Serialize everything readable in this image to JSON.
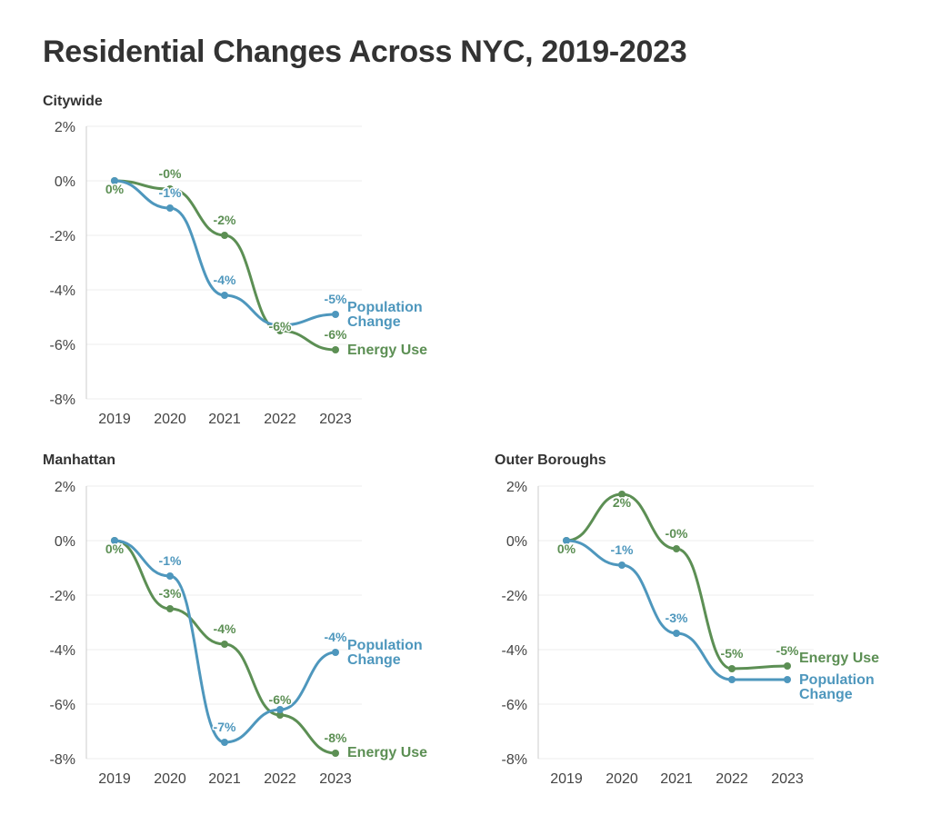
{
  "page_title": "Residential Changes Across NYC, 2019-2023",
  "colors": {
    "population": "#4e97bd",
    "energy": "#5c8f54",
    "axis": "#cccccc",
    "grid": "#eeeeee"
  },
  "chart_data": [
    {
      "type": "line",
      "title": "Citywide",
      "categories": [
        "2019",
        "2020",
        "2021",
        "2022",
        "2023"
      ],
      "ylim": [
        -8,
        2
      ],
      "yticks": [
        "2%",
        "0%",
        "-2%",
        "-4%",
        "-6%",
        "-8%"
      ],
      "ytick_values": [
        2,
        0,
        -2,
        -4,
        -6,
        -8
      ],
      "grid": true,
      "series": [
        {
          "key": "energy",
          "name": "Energy Use",
          "values": [
            0,
            -0.3,
            -2.0,
            -5.5,
            -6.2
          ],
          "labels": [
            "0%",
            "-0%",
            "-2%",
            "-6%",
            "-6%"
          ]
        },
        {
          "key": "population",
          "name": "Population Change",
          "values": [
            0,
            -1.0,
            -4.2,
            -5.3,
            -4.9
          ],
          "labels": [
            "",
            "-1%",
            "-4%",
            "",
            "-5%"
          ]
        }
      ]
    },
    {
      "type": "line",
      "title": "Manhattan",
      "categories": [
        "2019",
        "2020",
        "2021",
        "2022",
        "2023"
      ],
      "ylim": [
        -8,
        2
      ],
      "yticks": [
        "2%",
        "0%",
        "-2%",
        "-4%",
        "-6%",
        "-8%"
      ],
      "ytick_values": [
        2,
        0,
        -2,
        -4,
        -6,
        -8
      ],
      "grid": true,
      "series": [
        {
          "key": "energy",
          "name": "Energy Use",
          "values": [
            0,
            -2.5,
            -3.8,
            -6.4,
            -7.8
          ],
          "labels": [
            "0%",
            "-3%",
            "-4%",
            "-6%",
            "-8%"
          ]
        },
        {
          "key": "population",
          "name": "Population Change",
          "values": [
            0,
            -1.3,
            -7.4,
            -6.2,
            -4.1
          ],
          "labels": [
            "",
            "-1%",
            "-7%",
            "",
            "-4%"
          ]
        }
      ]
    },
    {
      "type": "line",
      "title": "Outer Boroughs",
      "categories": [
        "2019",
        "2020",
        "2021",
        "2022",
        "2023"
      ],
      "ylim": [
        -8,
        2
      ],
      "yticks": [
        "2%",
        "0%",
        "-2%",
        "-4%",
        "-6%",
        "-8%"
      ],
      "ytick_values": [
        2,
        0,
        -2,
        -4,
        -6,
        -8
      ],
      "grid": true,
      "series": [
        {
          "key": "energy",
          "name": "Energy Use",
          "values": [
            0,
            1.7,
            -0.3,
            -4.7,
            -4.6
          ],
          "labels": [
            "0%",
            "2%",
            "-0%",
            "-5%",
            "-5%"
          ]
        },
        {
          "key": "population",
          "name": "Population Change",
          "values": [
            0,
            -0.9,
            -3.4,
            -5.1,
            -5.1
          ],
          "labels": [
            "",
            "-1%",
            "-3%",
            "",
            ""
          ]
        }
      ]
    }
  ]
}
